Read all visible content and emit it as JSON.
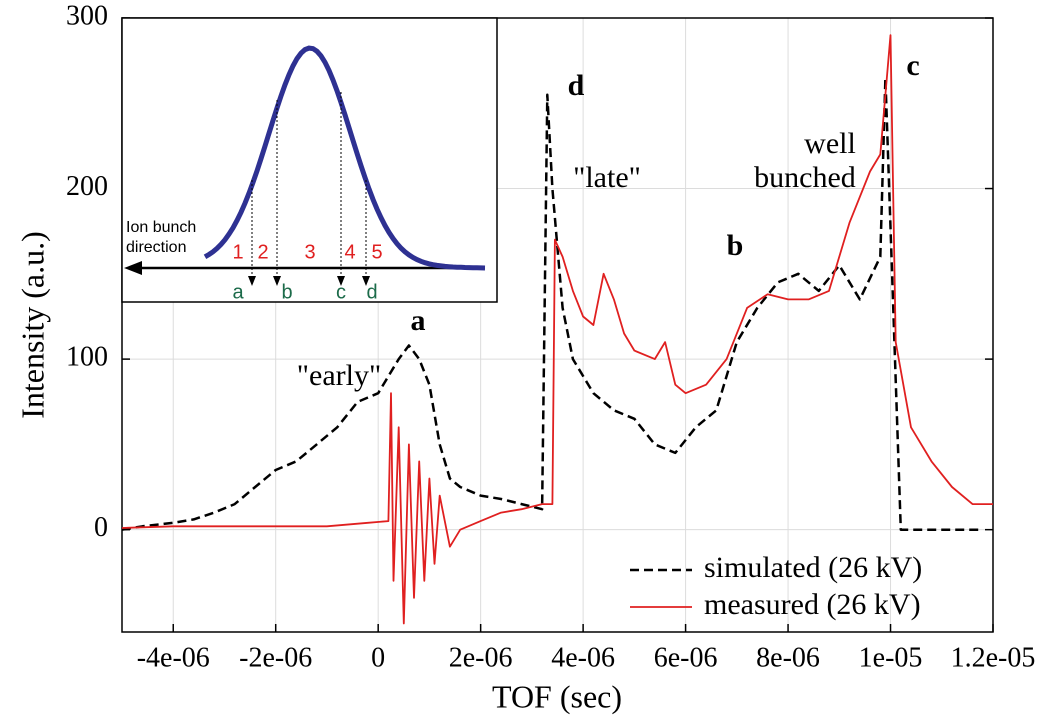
{
  "chart_data": {
    "type": "line",
    "xlabel": "TOF (sec)",
    "ylabel": "Intensity (a.u.)",
    "xlim": [
      -5e-06,
      1.2e-05
    ],
    "ylim": [
      -60,
      300
    ],
    "xticks": [
      {
        "value": -4e-06,
        "label": "-4e-06"
      },
      {
        "value": -2e-06,
        "label": "-2e-06"
      },
      0,
      {
        "value": 2e-06,
        "label": "2e-06"
      },
      {
        "value": 4e-06,
        "label": "4e-06"
      },
      {
        "value": 6e-06,
        "label": "6e-06"
      },
      {
        "value": 8e-06,
        "label": "8e-06"
      },
      {
        "value": 1e-05,
        "label": "1e-05"
      },
      {
        "value": 1.2e-05,
        "label": "1.2e-05"
      }
    ],
    "yticks": [
      0,
      100,
      200,
      300
    ],
    "grid": true,
    "legend": "lower right",
    "series": [
      {
        "name": "simulated (26 kV)",
        "color": "#000000",
        "dash": true,
        "x": [
          -5e-06,
          -4.6e-06,
          -4e-06,
          -3.6e-06,
          -3.2e-06,
          -2.8e-06,
          -2.4e-06,
          -2e-06,
          -1.6e-06,
          -1.2e-06,
          -8e-07,
          -4e-07,
          0,
          4e-07,
          6e-07,
          8e-07,
          1e-06,
          1.2e-06,
          1.4e-06,
          1.6e-06,
          2e-06,
          2.4e-06,
          2.8e-06,
          3.2e-06,
          3.3e-06,
          3.4e-06,
          3.6e-06,
          3.8e-06,
          4.2e-06,
          4.6e-06,
          5e-06,
          5.4e-06,
          5.8e-06,
          6.2e-06,
          6.6e-06,
          7e-06,
          7.4e-06,
          7.8e-06,
          8.2e-06,
          8.6e-06,
          9e-06,
          9.4e-06,
          9.8e-06,
          9.9e-06,
          1.02e-05,
          1.18e-05
        ],
        "values": [
          0,
          2,
          4,
          6,
          10,
          15,
          25,
          35,
          40,
          50,
          60,
          75,
          80,
          100,
          108,
          100,
          85,
          50,
          30,
          25,
          20,
          18,
          15,
          12,
          255,
          200,
          130,
          100,
          80,
          70,
          65,
          50,
          45,
          60,
          70,
          110,
          130,
          145,
          150,
          140,
          155,
          135,
          160,
          265,
          0,
          0
        ]
      },
      {
        "name": "measured (26 kV)",
        "color": "#e02020",
        "dash": false,
        "x": [
          -5e-06,
          -4e-06,
          -3e-06,
          -2e-06,
          -1e-06,
          -2e-07,
          2e-07,
          2.5e-07,
          3e-07,
          4e-07,
          5e-07,
          6e-07,
          7e-07,
          8e-07,
          9e-07,
          1e-06,
          1.1e-06,
          1.2e-06,
          1.4e-06,
          1.6e-06,
          2e-06,
          2.4e-06,
          2.8e-06,
          3.2e-06,
          3.4e-06,
          3.45e-06,
          3.6e-06,
          3.8e-06,
          4e-06,
          4.2e-06,
          4.4e-06,
          4.6e-06,
          4.8e-06,
          5e-06,
          5.4e-06,
          5.6e-06,
          5.8e-06,
          6e-06,
          6.4e-06,
          6.8e-06,
          7.2e-06,
          7.6e-06,
          8e-06,
          8.4e-06,
          8.8e-06,
          9.2e-06,
          9.6e-06,
          9.8e-06,
          1e-05,
          1.01e-05,
          1.04e-05,
          1.08e-05,
          1.12e-05,
          1.16e-05,
          1.2e-05
        ],
        "values": [
          1,
          2,
          2,
          2,
          2,
          4,
          5,
          80,
          -30,
          60,
          -55,
          50,
          -40,
          40,
          -30,
          30,
          -20,
          20,
          -10,
          0,
          5,
          10,
          12,
          15,
          15,
          170,
          160,
          140,
          125,
          120,
          150,
          135,
          115,
          105,
          100,
          110,
          85,
          80,
          85,
          100,
          130,
          138,
          135,
          135,
          140,
          180,
          210,
          220,
          290,
          110,
          60,
          40,
          25,
          15,
          15
        ]
      }
    ],
    "annotations": [
      "a",
      "b",
      "c",
      "d",
      "\"early\"",
      "\"late\"",
      "well",
      "bunched"
    ],
    "inset": {
      "direction_label": [
        "Ion bunch",
        "direction"
      ],
      "regions": [
        "1",
        "2",
        "3",
        "4",
        "5"
      ],
      "points": [
        "a",
        "b",
        "c",
        "d"
      ]
    }
  }
}
